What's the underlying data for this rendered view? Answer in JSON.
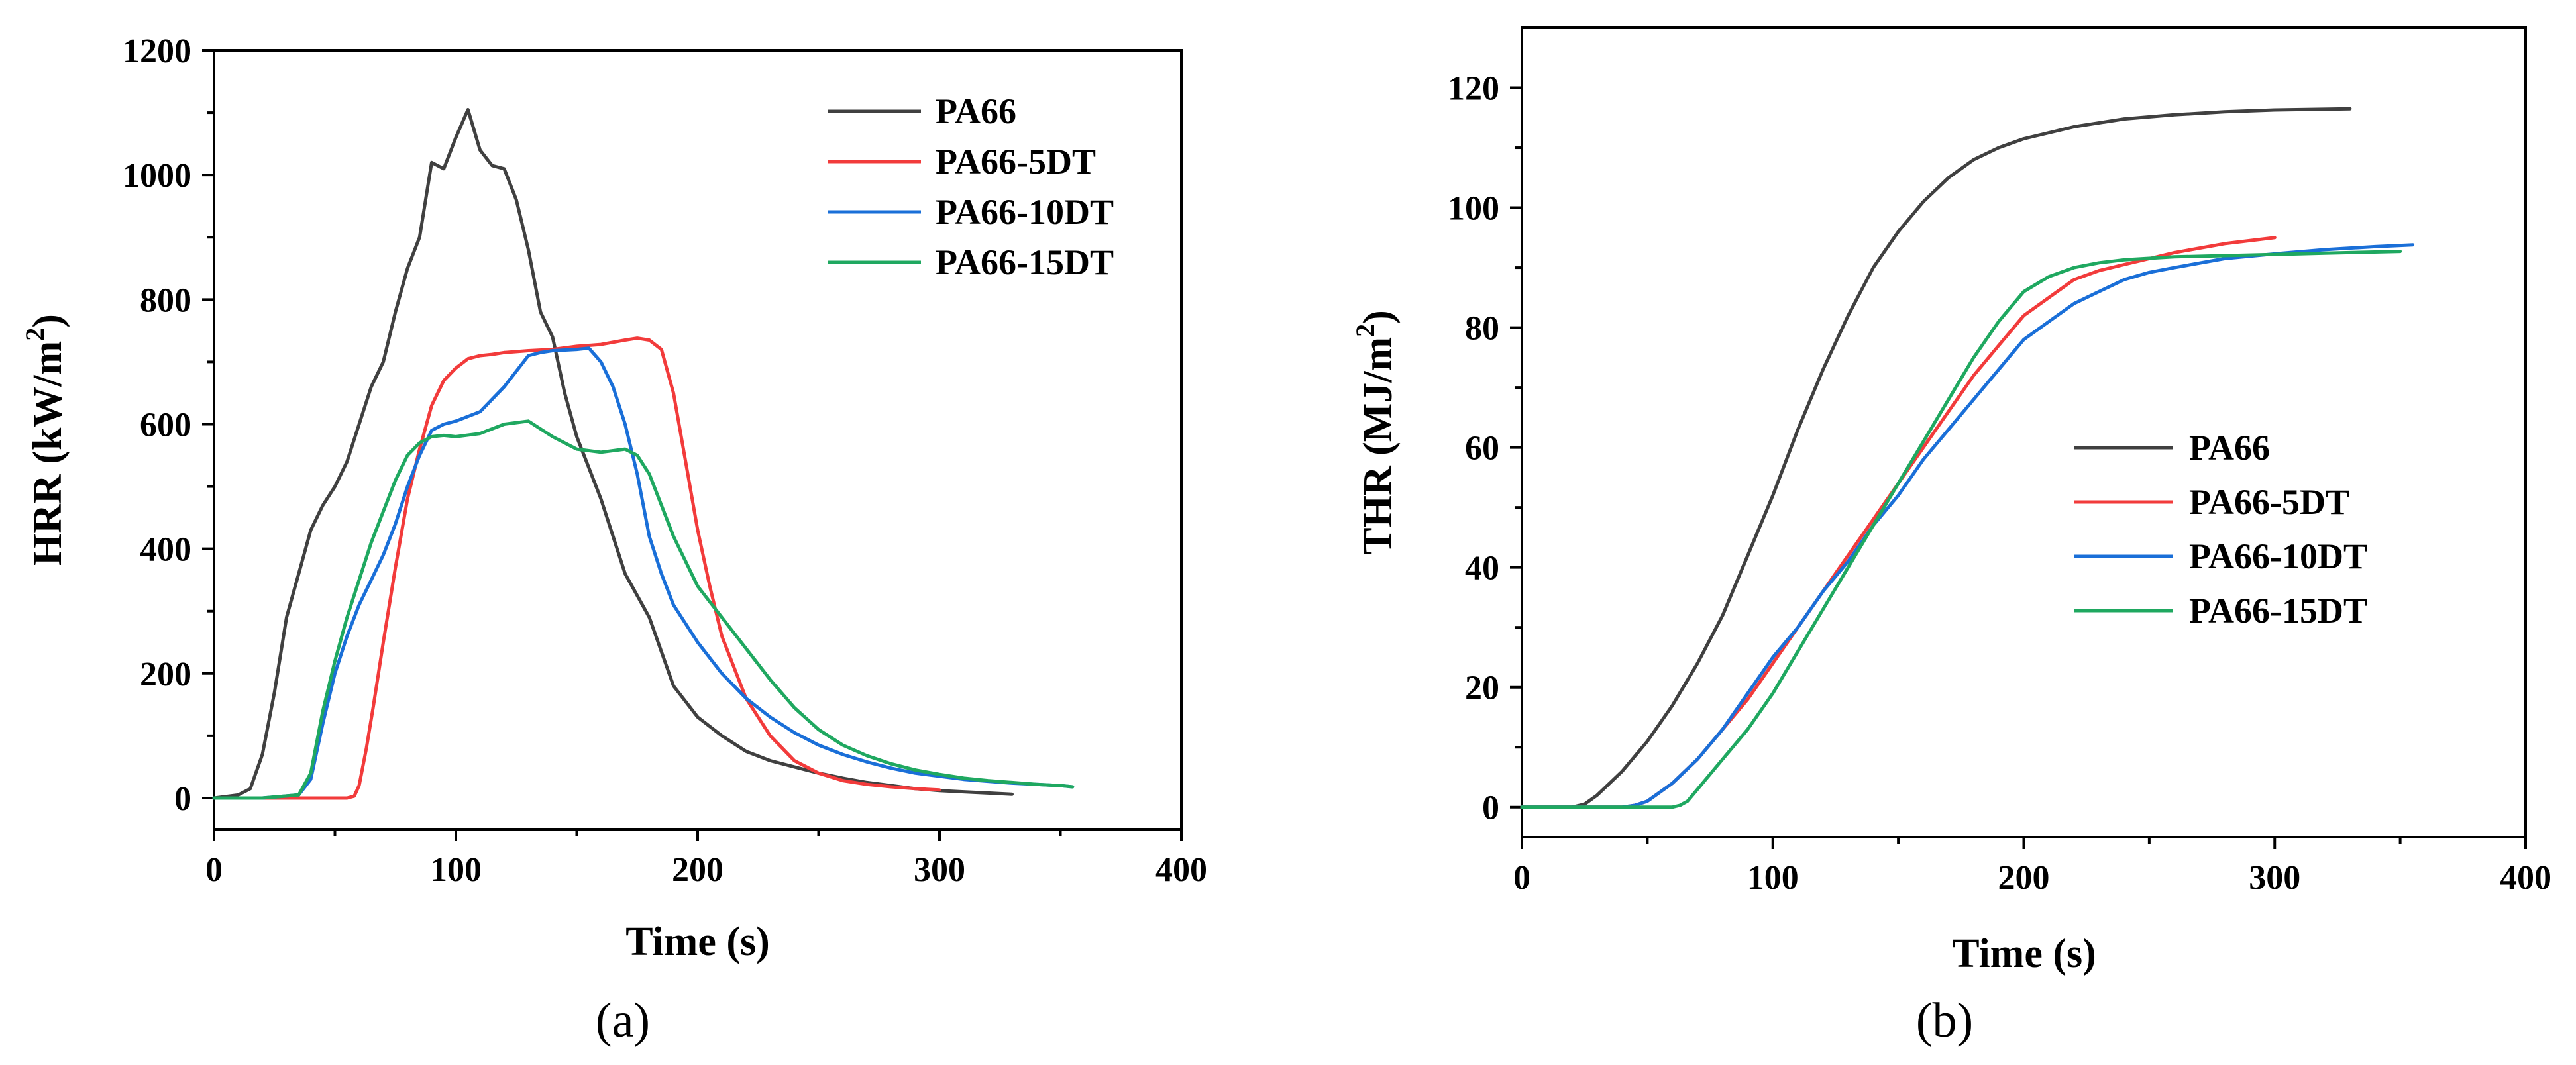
{
  "colors": {
    "PA66": "#404040",
    "PA66-5DT": "#f23b3b",
    "PA66-10DT": "#1a6fd8",
    "PA66-15DT": "#1fa860"
  },
  "chart_data": [
    {
      "type": "line",
      "panel_label": "(a)",
      "xlabel": "Time (s)",
      "ylabel_main": "HRR (kW/m",
      "ylabel_sup": "2",
      "ylabel_tail": ")",
      "xlim": [
        0,
        400
      ],
      "ylim": [
        -50,
        1200
      ],
      "xticks": [
        0,
        100,
        200,
        300,
        400
      ],
      "yticks": [
        0,
        200,
        400,
        600,
        800,
        1000,
        1200
      ],
      "legend_position": "top-right",
      "series": [
        {
          "name": "PA66",
          "x": [
            0,
            10,
            15,
            20,
            25,
            30,
            35,
            40,
            45,
            50,
            55,
            60,
            65,
            70,
            75,
            80,
            85,
            90,
            95,
            100,
            105,
            110,
            115,
            120,
            125,
            130,
            135,
            140,
            145,
            150,
            155,
            160,
            165,
            170,
            180,
            190,
            200,
            210,
            220,
            230,
            240,
            250,
            260,
            270,
            280,
            290,
            300,
            310,
            320,
            330
          ],
          "y": [
            0,
            5,
            15,
            70,
            170,
            290,
            360,
            430,
            470,
            500,
            540,
            600,
            660,
            700,
            780,
            850,
            900,
            1020,
            1010,
            1060,
            1105,
            1040,
            1015,
            1010,
            960,
            880,
            780,
            740,
            650,
            580,
            530,
            480,
            420,
            360,
            290,
            180,
            130,
            100,
            75,
            60,
            50,
            40,
            32,
            25,
            20,
            15,
            12,
            10,
            8,
            6
          ]
        },
        {
          "name": "PA66-5DT",
          "x": [
            0,
            20,
            40,
            50,
            55,
            58,
            60,
            63,
            66,
            70,
            75,
            80,
            85,
            90,
            95,
            100,
            105,
            110,
            115,
            120,
            130,
            140,
            150,
            160,
            170,
            175,
            180,
            185,
            190,
            195,
            200,
            205,
            210,
            220,
            230,
            240,
            250,
            260,
            270,
            280,
            290,
            300
          ],
          "y": [
            0,
            0,
            0,
            0,
            0,
            3,
            20,
            80,
            150,
            250,
            370,
            480,
            560,
            630,
            670,
            690,
            705,
            710,
            712,
            715,
            718,
            720,
            725,
            728,
            735,
            738,
            735,
            720,
            650,
            540,
            430,
            340,
            260,
            160,
            100,
            60,
            40,
            28,
            22,
            18,
            15,
            13
          ]
        },
        {
          "name": "PA66-10DT",
          "x": [
            0,
            20,
            35,
            40,
            45,
            50,
            55,
            60,
            65,
            70,
            75,
            80,
            85,
            90,
            95,
            100,
            110,
            120,
            130,
            135,
            140,
            150,
            155,
            160,
            165,
            170,
            175,
            180,
            185,
            190,
            200,
            210,
            220,
            230,
            240,
            250,
            260,
            270,
            280,
            290,
            300,
            310,
            320,
            330,
            340,
            350,
            355
          ],
          "y": [
            0,
            0,
            5,
            30,
            120,
            200,
            260,
            310,
            350,
            390,
            440,
            500,
            550,
            590,
            600,
            605,
            620,
            660,
            710,
            715,
            718,
            720,
            722,
            700,
            660,
            600,
            520,
            420,
            360,
            310,
            250,
            200,
            160,
            130,
            105,
            85,
            70,
            58,
            48,
            40,
            35,
            30,
            27,
            24,
            22,
            20,
            18
          ]
        },
        {
          "name": "PA66-15DT",
          "x": [
            0,
            20,
            35,
            40,
            45,
            50,
            55,
            60,
            65,
            70,
            75,
            80,
            85,
            90,
            95,
            100,
            110,
            120,
            130,
            140,
            150,
            160,
            170,
            175,
            180,
            185,
            190,
            195,
            200,
            210,
            220,
            230,
            240,
            250,
            260,
            270,
            280,
            290,
            300,
            310,
            320,
            330,
            340,
            350,
            355
          ],
          "y": [
            0,
            0,
            5,
            40,
            140,
            220,
            290,
            350,
            410,
            460,
            510,
            550,
            570,
            580,
            582,
            580,
            585,
            600,
            605,
            580,
            560,
            555,
            560,
            550,
            520,
            470,
            420,
            380,
            340,
            290,
            240,
            190,
            145,
            110,
            85,
            68,
            55,
            45,
            38,
            32,
            28,
            25,
            22,
            20,
            18
          ]
        }
      ]
    },
    {
      "type": "line",
      "panel_label": "(b)",
      "xlabel": "Time (s)",
      "ylabel_main": "THR (MJ/m",
      "ylabel_sup": "2",
      "ylabel_tail": ")",
      "xlim": [
        0,
        400
      ],
      "ylim": [
        -5,
        130
      ],
      "xticks": [
        0,
        100,
        200,
        300,
        400
      ],
      "yticks": [
        0,
        20,
        40,
        60,
        80,
        100,
        120
      ],
      "legend_position": "center-right",
      "series": [
        {
          "name": "PA66",
          "x": [
            0,
            20,
            25,
            30,
            40,
            50,
            60,
            70,
            80,
            90,
            100,
            110,
            120,
            130,
            140,
            150,
            160,
            170,
            180,
            190,
            200,
            220,
            240,
            260,
            280,
            300,
            330
          ],
          "y": [
            0,
            0,
            0.5,
            2,
            6,
            11,
            17,
            24,
            32,
            42,
            52,
            63,
            73,
            82,
            90,
            96,
            101,
            105,
            108,
            110,
            111.5,
            113.5,
            114.8,
            115.5,
            116,
            116.3,
            116.5
          ]
        },
        {
          "name": "PA66-5DT",
          "x": [
            0,
            40,
            45,
            50,
            60,
            70,
            80,
            90,
            100,
            110,
            120,
            130,
            140,
            150,
            160,
            170,
            180,
            190,
            200,
            210,
            220,
            230,
            240,
            250,
            260,
            280,
            300
          ],
          "y": [
            0,
            0,
            0.3,
            1,
            4,
            8,
            13,
            18,
            24,
            30,
            36,
            42,
            48,
            54,
            60,
            66,
            72,
            77,
            82,
            85,
            88,
            89.5,
            90.5,
            91.5,
            92.5,
            94,
            95
          ]
        },
        {
          "name": "PA66-10DT",
          "x": [
            0,
            40,
            45,
            50,
            60,
            70,
            80,
            90,
            100,
            110,
            120,
            130,
            140,
            150,
            160,
            170,
            180,
            190,
            200,
            210,
            220,
            230,
            240,
            250,
            260,
            280,
            300,
            320,
            340,
            355
          ],
          "y": [
            0,
            0,
            0.3,
            1,
            4,
            8,
            13,
            19,
            25,
            30,
            36,
            41,
            47,
            52,
            58,
            63,
            68,
            73,
            78,
            81,
            84,
            86,
            88,
            89.2,
            90,
            91.5,
            92.3,
            93,
            93.5,
            93.8
          ]
        },
        {
          "name": "PA66-15DT",
          "x": [
            0,
            60,
            63,
            66,
            70,
            80,
            90,
            100,
            110,
            120,
            130,
            140,
            150,
            160,
            170,
            180,
            190,
            200,
            210,
            220,
            230,
            240,
            260,
            280,
            300,
            320,
            350
          ],
          "y": [
            0,
            0,
            0.3,
            1,
            3,
            8,
            13,
            19,
            26,
            33,
            40,
            47,
            54,
            61,
            68,
            75,
            81,
            86,
            88.5,
            90,
            90.8,
            91.3,
            91.8,
            92,
            92.2,
            92.4,
            92.7
          ]
        }
      ]
    }
  ]
}
